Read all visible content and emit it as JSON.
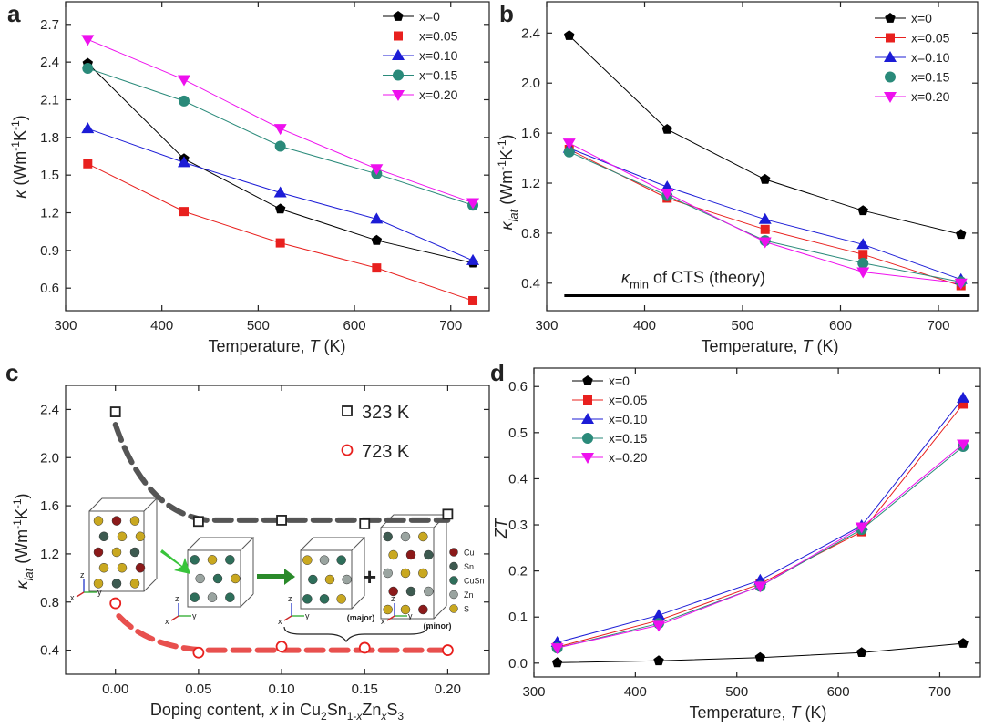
{
  "chart_data": [
    {
      "panel": "a",
      "type": "line",
      "xlabel": "Temperature, T (K)",
      "ylabel": "κ (Wm⁻¹K⁻¹)",
      "xlim": [
        300,
        740
      ],
      "ylim": [
        0.42,
        2.88
      ],
      "xticks": [
        300,
        400,
        500,
        600,
        700
      ],
      "yticks": [
        0.6,
        0.9,
        1.2,
        1.5,
        1.8,
        2.1,
        2.4,
        2.7
      ],
      "legend_position": "top-right",
      "x": [
        323,
        423,
        523,
        623,
        723
      ],
      "series": [
        {
          "name": "x=0",
          "color": "#000000",
          "marker": "pentagon",
          "values": [
            2.39,
            1.63,
            1.23,
            0.98,
            0.8
          ]
        },
        {
          "name": "x=0.05",
          "color": "#e8201e",
          "marker": "square",
          "values": [
            1.59,
            1.21,
            0.96,
            0.76,
            0.5
          ]
        },
        {
          "name": "x=0.10",
          "color": "#1c1cd6",
          "marker": "triangle-up",
          "values": [
            1.87,
            1.6,
            1.36,
            1.15,
            0.82
          ]
        },
        {
          "name": "x=0.15",
          "color": "#2a8a7a",
          "marker": "circle",
          "values": [
            2.35,
            2.09,
            1.73,
            1.51,
            1.26
          ]
        },
        {
          "name": "x=0.20",
          "color": "#ee10ee",
          "marker": "triangle-down",
          "values": [
            2.58,
            2.26,
            1.87,
            1.55,
            1.28
          ]
        }
      ]
    },
    {
      "panel": "b",
      "type": "line",
      "xlabel": "Temperature, T (K)",
      "ylabel": "κlat (Wm⁻¹K⁻¹)",
      "xlim": [
        300,
        740
      ],
      "ylim": [
        0.18,
        2.65
      ],
      "xticks": [
        300,
        400,
        500,
        600,
        700
      ],
      "yticks": [
        0.4,
        0.8,
        1.2,
        1.6,
        2.0,
        2.4
      ],
      "legend_position": "top-right",
      "x": [
        323,
        423,
        523,
        623,
        723
      ],
      "reference_line": {
        "value": 0.3,
        "label": "κmin of CTS (theory)"
      },
      "series": [
        {
          "name": "x=0",
          "color": "#000000",
          "marker": "pentagon",
          "values": [
            2.38,
            1.63,
            1.23,
            0.98,
            0.79
          ]
        },
        {
          "name": "x=0.05",
          "color": "#e8201e",
          "marker": "square",
          "values": [
            1.47,
            1.08,
            0.83,
            0.63,
            0.38
          ]
        },
        {
          "name": "x=0.10",
          "color": "#1c1cd6",
          "marker": "triangle-up",
          "values": [
            1.48,
            1.17,
            0.91,
            0.71,
            0.43
          ]
        },
        {
          "name": "x=0.15",
          "color": "#2a8a7a",
          "marker": "circle",
          "values": [
            1.45,
            1.1,
            0.74,
            0.56,
            0.41
          ]
        },
        {
          "name": "x=0.20",
          "color": "#ee10ee",
          "marker": "triangle-down",
          "values": [
            1.52,
            1.12,
            0.73,
            0.49,
            0.4
          ]
        }
      ]
    },
    {
      "panel": "c",
      "type": "scatter",
      "xlabel": "Doping content, x in Cu2Sn1-xZnxS3",
      "ylabel": "κlat (Wm⁻¹K⁻¹)",
      "xlim": [
        -0.03,
        0.225
      ],
      "ylim": [
        0.2,
        2.6
      ],
      "xticks": [
        0.0,
        0.05,
        0.1,
        0.15,
        0.2
      ],
      "yticks": [
        0.4,
        0.8,
        1.2,
        1.6,
        2.0,
        2.4
      ],
      "x": [
        0.0,
        0.05,
        0.1,
        0.15,
        0.2
      ],
      "series": [
        {
          "name": "323 K",
          "color": "#222222",
          "marker": "open-square",
          "values": [
            2.38,
            1.47,
            1.48,
            1.45,
            1.53
          ]
        },
        {
          "name": "723 K",
          "color": "#e8201e",
          "marker": "open-circle",
          "values": [
            0.79,
            0.38,
            0.43,
            0.42,
            0.4
          ]
        }
      ],
      "inset": {
        "legend": [
          "Cu",
          "Sn",
          "CuSn",
          "Zn",
          "S"
        ],
        "legend_colors": [
          "#8b1a1a",
          "#3d5a50",
          "#2e6e5a",
          "#9aa4a0",
          "#c9a820"
        ],
        "labels": [
          "(major)",
          "(minor)"
        ]
      }
    },
    {
      "panel": "d",
      "type": "line",
      "xlabel": "Temperature, T (K)",
      "ylabel": "ZT",
      "xlim": [
        300,
        740
      ],
      "ylim": [
        -0.03,
        0.64
      ],
      "xticks": [
        300,
        400,
        500,
        600,
        700
      ],
      "yticks": [
        0.0,
        0.1,
        0.2,
        0.3,
        0.4,
        0.5,
        0.6
      ],
      "legend_position": "top-left",
      "x": [
        323,
        423,
        523,
        623,
        723
      ],
      "series": [
        {
          "name": "x=0",
          "color": "#000000",
          "marker": "pentagon",
          "values": [
            0.001,
            0.005,
            0.012,
            0.023,
            0.043
          ]
        },
        {
          "name": "x=0.05",
          "color": "#e8201e",
          "marker": "square",
          "values": [
            0.035,
            0.093,
            0.172,
            0.285,
            0.562
          ]
        },
        {
          "name": "x=0.10",
          "color": "#1c1cd6",
          "marker": "triangle-up",
          "values": [
            0.045,
            0.104,
            0.18,
            0.298,
            0.575
          ]
        },
        {
          "name": "x=0.15",
          "color": "#2a8a7a",
          "marker": "circle",
          "values": [
            0.033,
            0.086,
            0.167,
            0.29,
            0.47
          ]
        },
        {
          "name": "x=0.20",
          "color": "#ee10ee",
          "marker": "triangle-down",
          "values": [
            0.033,
            0.082,
            0.167,
            0.295,
            0.475
          ]
        }
      ]
    }
  ],
  "panels": {
    "a": {
      "letter": "a"
    },
    "b": {
      "letter": "b"
    },
    "c": {
      "letter": "c"
    },
    "d": {
      "letter": "d"
    }
  }
}
